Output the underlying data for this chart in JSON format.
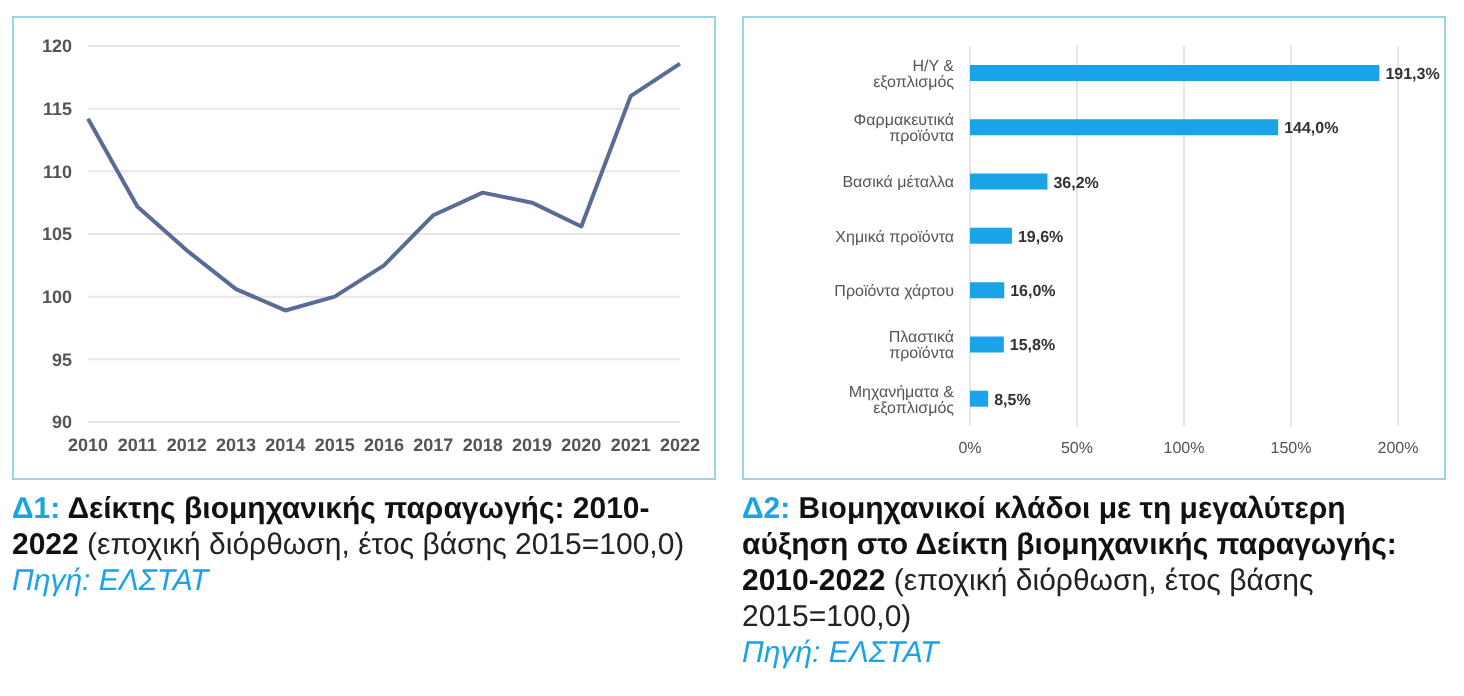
{
  "chart_data": [
    {
      "type": "line",
      "title": "Δ1: Δείκτης βιομηχανικής παραγωγής: 2010-2022",
      "subtitle": "(εποχική διόρθωση, έτος βάσης 2015=100,0)",
      "annotations": [
        "Πηγή: ΕΛΣΤΑΤ"
      ],
      "categories": [
        "2010",
        "2011",
        "2012",
        "2013",
        "2014",
        "2015",
        "2016",
        "2017",
        "2018",
        "2019",
        "2020",
        "2021",
        "2022"
      ],
      "series": [
        {
          "color": "#5a6b96",
          "values": [
            114.2,
            107.2,
            103.7,
            100.6,
            98.9,
            100.0,
            102.5,
            106.5,
            108.3,
            107.5,
            105.6,
            116.0,
            118.6
          ]
        }
      ],
      "ylim": [
        90,
        120
      ],
      "yticks": [
        90,
        95,
        100,
        105,
        110,
        115,
        120
      ],
      "grid": "y",
      "legend": false,
      "marker": "none",
      "line_style": "solid"
    },
    {
      "type": "bar",
      "orientation": "horizontal",
      "title": "Δ2: Βιομηχανικοί κλάδοι με τη μεγαλύτερη αύξηση στο Δείκτη βιομηχανικής παραγωγής: 2010-2022",
      "subtitle": "(εποχική διόρθωση, έτος βάσης 2015=100,0)",
      "annotations": [
        "Πηγή: ΕΛΣΤΑΤ"
      ],
      "categories": [
        "Η/Υ & εξοπλισμός",
        "Φαρμακευτικά προϊόντα",
        "Βασικά μέταλλα",
        "Χημικά προϊόντα",
        "Προϊόντα χάρτου",
        "Πλαστικά προϊόντα",
        "Μηχανήματα & εξοπλισμός"
      ],
      "series": [
        {
          "color": "#1ba3e8",
          "values": [
            191.3,
            144.0,
            36.2,
            19.6,
            16.0,
            15.8,
            8.5
          ],
          "value_labels": [
            "191,3%",
            "144,0%",
            "36,2%",
            "19,6%",
            "16,0%",
            "15,8%",
            "8,5%"
          ]
        }
      ],
      "xlim": [
        0,
        200
      ],
      "xticks": [
        {
          "value": 0,
          "label": "0%"
        },
        {
          "value": 50,
          "label": "50%"
        },
        {
          "value": 100,
          "label": "100%"
        },
        {
          "value": 150,
          "label": "150%"
        },
        {
          "value": 200,
          "label": "200%"
        }
      ],
      "grid": "x",
      "legend": false
    }
  ]
}
